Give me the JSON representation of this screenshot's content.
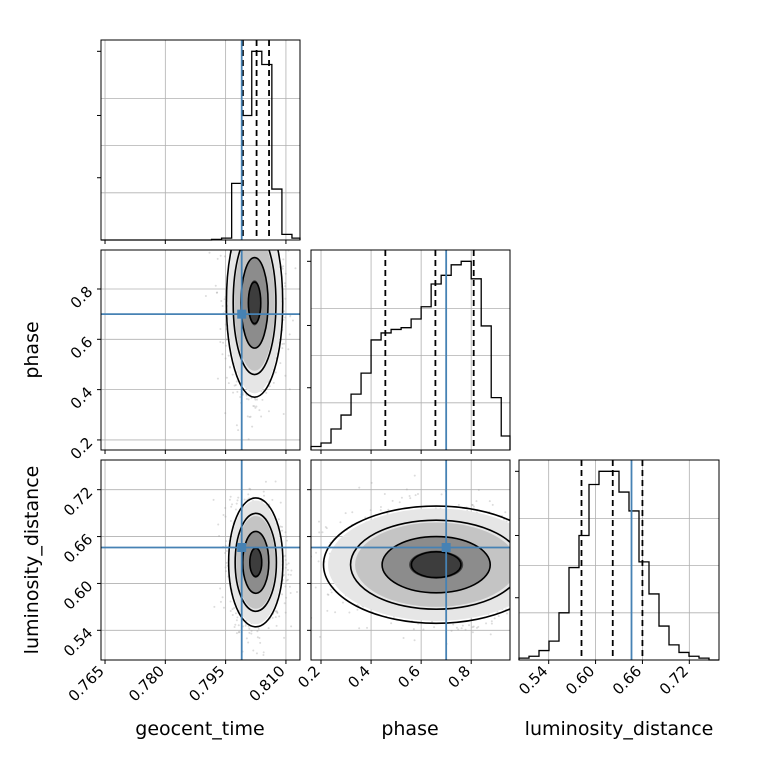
{
  "chart_data": {
    "type": "corner",
    "parameters": [
      "geocent_time",
      "phase",
      "luminosity_distance"
    ],
    "truths": {
      "geocent_time": 0.799,
      "phase": 0.7,
      "luminosity_distance": 0.646
    },
    "ranges": {
      "geocent_time": [
        0.764,
        0.8135
      ],
      "phase": [
        0.16,
        0.955
      ],
      "luminosity_distance": [
        0.502,
        0.758
      ]
    },
    "ticks": {
      "geocent_time": [
        "0.765",
        "0.780",
        "0.795",
        "0.810"
      ],
      "phase": [
        "0.2",
        "0.4",
        "0.6",
        "0.8"
      ],
      "luminosity_distance": [
        "0.54",
        "0.60",
        "0.66",
        "0.72"
      ]
    },
    "quantiles": {
      "geocent_time": [
        0.7993,
        0.8027,
        0.8058
      ],
      "phase": [
        0.457,
        0.657,
        0.81
      ],
      "luminosity_distance": [
        0.582,
        0.622,
        0.66
      ]
    },
    "histograms": {
      "geocent_time": {
        "edges": [
          0.764,
          0.7665,
          0.769,
          0.7715,
          0.774,
          0.7765,
          0.779,
          0.7815,
          0.784,
          0.7865,
          0.789,
          0.7915,
          0.794,
          0.7965,
          0.799,
          0.8015,
          0.804,
          0.8065,
          0.809,
          0.8115,
          0.8135
        ],
        "counts": [
          0,
          0,
          0,
          0,
          0,
          0,
          0,
          0,
          0,
          0,
          0,
          0.003,
          0.01,
          0.3,
          0.66,
          1.0,
          0.93,
          0.27,
          0.03,
          0.01
        ]
      },
      "phase": {
        "edges": [
          0.16,
          0.2,
          0.24,
          0.28,
          0.32,
          0.36,
          0.4,
          0.44,
          0.48,
          0.52,
          0.56,
          0.6,
          0.64,
          0.68,
          0.72,
          0.76,
          0.8,
          0.84,
          0.88,
          0.92,
          0.955
        ],
        "counts": [
          0.02,
          0.04,
          0.12,
          0.2,
          0.32,
          0.44,
          0.63,
          0.67,
          0.69,
          0.7,
          0.75,
          0.82,
          0.95,
          1.0,
          1.06,
          1.08,
          0.98,
          0.71,
          0.3,
          0.08
        ]
      },
      "luminosity_distance": {
        "edges": [
          0.502,
          0.5148,
          0.5276,
          0.5404,
          0.5532,
          0.566,
          0.5788,
          0.5916,
          0.6044,
          0.6172,
          0.63,
          0.6428,
          0.6556,
          0.6684,
          0.6812,
          0.694,
          0.7068,
          0.7196,
          0.7324,
          0.7452,
          0.758
        ],
        "counts": [
          0.01,
          0.02,
          0.05,
          0.1,
          0.25,
          0.49,
          0.66,
          0.93,
          1.0,
          1.0,
          0.89,
          0.79,
          0.52,
          0.35,
          0.18,
          0.08,
          0.04,
          0.02,
          0.01,
          0
        ]
      }
    },
    "posterior_2d": {
      "phase_vs_geocent_time": {
        "center": [
          0.8022,
          0.745
        ],
        "sd": [
          0.0028,
          0.15
        ],
        "rho": 0
      },
      "luminosity_distance_vs_geocent_time": {
        "center": [
          0.8025,
          0.627
        ],
        "sd": [
          0.0027,
          0.033
        ],
        "rho": 0
      },
      "luminosity_distance_vs_phase": {
        "center": [
          0.66,
          0.624
        ],
        "sd": [
          0.18,
          0.03
        ],
        "rho": 0
      }
    }
  }
}
